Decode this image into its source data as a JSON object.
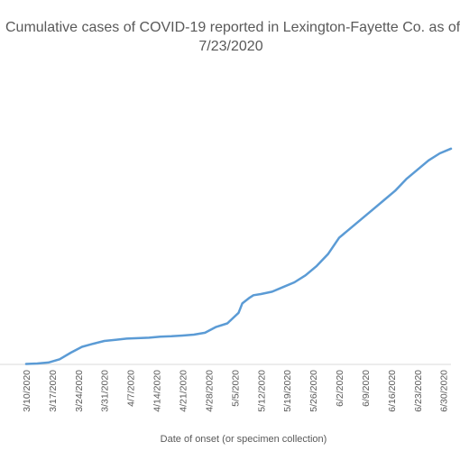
{
  "chart_data": {
    "type": "line",
    "title_line1": "Cumulative cases of COVID-19 reported in Lexington-Fayette Co.  as of",
    "title_line2": "7/23/2020",
    "xlabel": "Date of onset (or specimen collection)",
    "ylabel": "",
    "grid": false,
    "series_color": "#5B9BD5",
    "x_ticks": [
      "3/10/2020",
      "3/17/2020",
      "3/24/2020",
      "3/31/2020",
      "4/7/2020",
      "4/14/2020",
      "4/21/2020",
      "4/28/2020",
      "5/5/2020",
      "5/12/2020",
      "5/19/2020",
      "5/26/2020",
      "6/2/2020",
      "6/9/2020",
      "6/16/2020",
      "6/23/2020",
      "6/30/2020"
    ],
    "x_days": [
      0,
      7,
      14,
      21,
      28,
      35,
      42,
      49,
      56,
      63,
      70,
      77,
      84,
      91,
      98,
      105,
      112
    ],
    "series": [
      {
        "x": [
          0,
          3,
          6,
          9,
          12,
          15,
          18,
          21,
          24,
          27,
          30,
          33,
          36,
          39,
          42,
          45,
          48,
          51,
          54,
          57,
          58,
          60,
          61,
          63,
          66,
          69,
          72,
          75,
          78,
          81,
          84,
          87,
          90,
          93,
          96,
          99,
          102,
          105,
          108,
          111,
          114
        ],
        "y": [
          2,
          4,
          8,
          22,
          50,
          75,
          88,
          100,
          105,
          110,
          112,
          114,
          118,
          120,
          123,
          127,
          135,
          160,
          175,
          220,
          260,
          285,
          295,
          300,
          310,
          330,
          350,
          380,
          420,
          470,
          540,
          580,
          620,
          660,
          700,
          740,
          790,
          830,
          870,
          900,
          920
        ]
      }
    ],
    "xlim": [
      -7,
      114
    ],
    "ylim": [
      0,
      1400
    ]
  }
}
